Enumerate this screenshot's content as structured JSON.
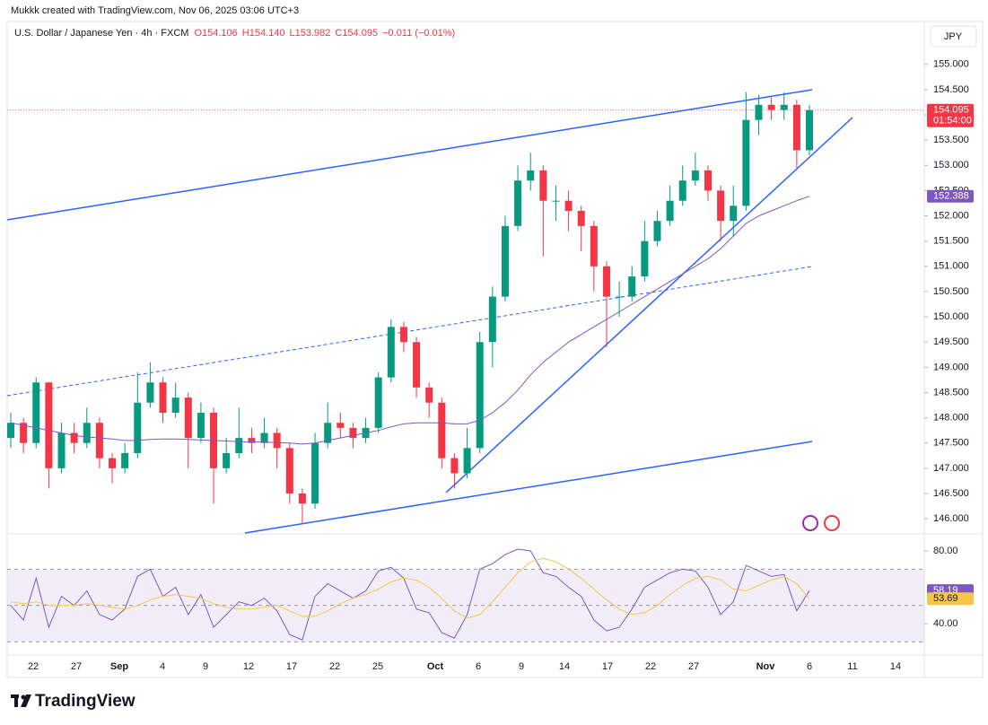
{
  "chart_data": {
    "type": "candlestick",
    "watermark": "Mukkk created with TradingView.com, Nov 06, 2025 03:06 UTC+3",
    "symbol": "U.S. Dollar / Japanese Yen · 4h · FXCM",
    "legend_values": [
      "O154.106",
      "H154.140",
      "L153.982",
      "C154.095",
      "−0.011 (−0.01%)"
    ],
    "currency": "JPY",
    "logo": "TradingView",
    "up_color": "#089981",
    "down_color": "#f23645",
    "ylim": [
      145.7,
      155.85
    ],
    "yticks": [
      {
        "value": 146,
        "label": "146.000"
      },
      {
        "value": 146.5,
        "label": "146.500"
      },
      {
        "value": 147,
        "label": "147.000"
      },
      {
        "value": 147.5,
        "label": "147.500"
      },
      {
        "value": 148,
        "label": "148.000"
      },
      {
        "value": 148.5,
        "label": "148.500"
      },
      {
        "value": 149,
        "label": "149.000"
      },
      {
        "value": 149.5,
        "label": "149.500"
      },
      {
        "value": 150,
        "label": "150.000"
      },
      {
        "value": 150.5,
        "label": "150.500"
      },
      {
        "value": 151,
        "label": "151.000"
      },
      {
        "value": 151.5,
        "label": "151.500"
      },
      {
        "value": 152,
        "label": "152.000"
      },
      {
        "value": 152.5,
        "label": "152.500"
      },
      {
        "value": 153,
        "label": "153.000"
      },
      {
        "value": 153.5,
        "label": "153.500"
      },
      {
        "value": 154,
        "label": "154.000"
      },
      {
        "value": 154.5,
        "label": "154.500"
      },
      {
        "value": 155,
        "label": "155.000"
      }
    ],
    "xlabels": [
      "22",
      "27",
      "Sep",
      "4",
      "9",
      "12",
      "17",
      "22",
      "25",
      "Oct",
      "6",
      "9",
      "14",
      "17",
      "22",
      "27",
      "Nov",
      "6",
      "11",
      "14"
    ],
    "last_price": {
      "value": 154.095,
      "label": "154.095"
    },
    "countdown": "01:54:00",
    "ohlc": {
      "open": [
        147.6,
        147.9,
        147.5,
        148.7,
        147.0,
        147.7,
        147.5,
        147.9,
        147.2,
        147.0,
        147.3,
        148.3,
        148.7,
        148.1,
        148.4,
        147.6,
        148.1,
        147.0,
        147.3,
        147.6,
        147.5,
        147.7,
        147.4,
        146.5,
        146.3,
        147.5,
        147.9,
        147.8,
        147.6,
        147.8,
        148.8,
        149.8,
        149.5,
        148.6,
        148.3,
        147.2,
        146.9,
        147.4,
        149.5,
        150.4,
        151.8,
        152.7,
        152.9,
        152.3,
        152.3,
        152.1,
        151.8,
        151.0,
        150.4,
        150.4,
        150.8,
        151.5,
        151.9,
        152.3,
        152.7,
        152.9,
        152.5,
        151.9,
        152.2,
        153.9,
        154.2,
        154.1,
        154.2,
        153.3
      ],
      "high": [
        148.1,
        148.0,
        148.8,
        148.7,
        147.9,
        147.9,
        148.2,
        148.0,
        147.3,
        147.5,
        148.9,
        149.1,
        148.8,
        148.7,
        148.5,
        148.3,
        148.2,
        147.6,
        148.2,
        147.8,
        148.0,
        147.8,
        147.5,
        146.6,
        147.7,
        148.3,
        148.1,
        147.9,
        148.0,
        148.9,
        149.95,
        149.9,
        149.6,
        148.7,
        148.4,
        147.3,
        147.8,
        149.7,
        150.6,
        152.0,
        153.0,
        153.25,
        153.0,
        152.6,
        152.5,
        152.2,
        151.9,
        151.1,
        150.7,
        151.0,
        151.9,
        152.1,
        152.6,
        153.0,
        153.25,
        153.0,
        152.6,
        152.6,
        154.45,
        154.4,
        154.35,
        154.45,
        154.3,
        154.2
      ],
      "low": [
        147.4,
        147.3,
        147.4,
        146.6,
        146.9,
        147.3,
        147.4,
        147.0,
        146.7,
        146.9,
        147.2,
        148.2,
        147.9,
        148.0,
        147.0,
        147.5,
        146.3,
        146.9,
        147.2,
        147.3,
        147.4,
        147.0,
        146.3,
        145.9,
        146.2,
        147.4,
        147.6,
        147.4,
        147.5,
        147.7,
        148.7,
        149.3,
        148.4,
        148.0,
        147.0,
        146.6,
        146.8,
        147.3,
        149.0,
        150.3,
        151.7,
        152.5,
        151.2,
        151.9,
        151.7,
        151.3,
        150.5,
        149.4,
        150.0,
        150.3,
        150.7,
        151.4,
        151.8,
        152.2,
        152.6,
        152.3,
        151.5,
        151.6,
        152.1,
        153.6,
        153.9,
        153.9,
        152.95,
        153.2
      ],
      "close": [
        147.9,
        147.5,
        148.7,
        147.0,
        147.7,
        147.5,
        147.9,
        147.2,
        147.0,
        147.3,
        148.3,
        148.7,
        148.1,
        148.4,
        147.6,
        148.1,
        147.0,
        147.3,
        147.6,
        147.5,
        147.7,
        147.4,
        146.5,
        146.3,
        147.5,
        147.9,
        147.8,
        147.6,
        147.8,
        148.8,
        149.8,
        149.5,
        148.6,
        148.3,
        147.2,
        146.9,
        147.4,
        149.5,
        150.4,
        151.8,
        152.7,
        152.9,
        152.3,
        152.3,
        152.1,
        151.8,
        151.0,
        150.4,
        150.4,
        150.8,
        151.5,
        151.9,
        152.3,
        152.7,
        152.9,
        152.5,
        151.9,
        152.2,
        153.9,
        154.2,
        154.1,
        154.2,
        153.3,
        154.095
      ]
    },
    "ma": {
      "color": "#7e57c2",
      "last": {
        "value": 152.388,
        "label": "152.388"
      },
      "values": [
        147.9,
        147.85,
        147.8,
        147.75,
        147.7,
        147.65,
        147.62,
        147.6,
        147.58,
        147.55,
        147.55,
        147.57,
        147.58,
        147.58,
        147.57,
        147.56,
        147.55,
        147.54,
        147.53,
        147.52,
        147.52,
        147.51,
        147.5,
        147.48,
        147.5,
        147.55,
        147.6,
        147.65,
        147.7,
        147.75,
        147.82,
        147.88,
        147.9,
        147.9,
        147.9,
        147.88,
        147.88,
        147.95,
        148.1,
        148.3,
        148.55,
        148.85,
        149.1,
        149.3,
        149.5,
        149.65,
        149.8,
        149.95,
        150.1,
        150.25,
        150.4,
        150.55,
        150.7,
        150.85,
        151.0,
        151.15,
        151.35,
        151.6,
        151.85,
        152.0,
        152.1,
        152.2,
        152.3,
        152.388
      ]
    },
    "rsi": {
      "ylim": [
        24.2,
        88.4
      ],
      "yticks": [
        {
          "value": 80,
          "label": "80.00"
        },
        {
          "value": 40,
          "label": "40.00"
        }
      ],
      "levels": [
        70,
        50,
        30
      ],
      "color": "#7e57c2",
      "ma_color": "#f7c548",
      "last": {
        "value": 58.19,
        "label": "58.19"
      },
      "ma_last": {
        "value": 53.69,
        "label": "53.69"
      },
      "values": [
        50,
        42,
        65,
        38,
        55,
        50,
        58,
        45,
        42,
        48,
        66,
        70,
        55,
        60,
        45,
        56,
        38,
        45,
        52,
        50,
        54,
        47,
        34,
        31,
        55,
        62,
        58,
        54,
        58,
        69,
        71,
        65,
        48,
        46,
        35,
        32,
        45,
        70,
        73,
        78,
        81,
        80,
        68,
        66,
        60,
        55,
        42,
        36,
        38,
        48,
        60,
        64,
        68,
        70,
        69,
        60,
        45,
        52,
        72,
        69,
        66,
        67,
        47,
        58.19
      ],
      "ma_values": [
        52,
        51,
        52,
        50,
        50,
        50,
        51,
        50,
        49,
        48,
        50,
        53,
        55,
        56,
        55,
        54,
        51,
        49,
        48,
        48,
        49,
        50,
        47,
        44,
        44,
        47,
        51,
        54,
        56,
        59,
        63,
        65,
        64,
        60,
        54,
        47,
        43,
        45,
        52,
        60,
        68,
        74,
        76,
        74,
        70,
        65,
        59,
        53,
        48,
        45,
        46,
        50,
        56,
        61,
        65,
        66,
        64,
        59,
        58,
        61,
        64,
        66,
        62,
        53.69
      ]
    }
  }
}
